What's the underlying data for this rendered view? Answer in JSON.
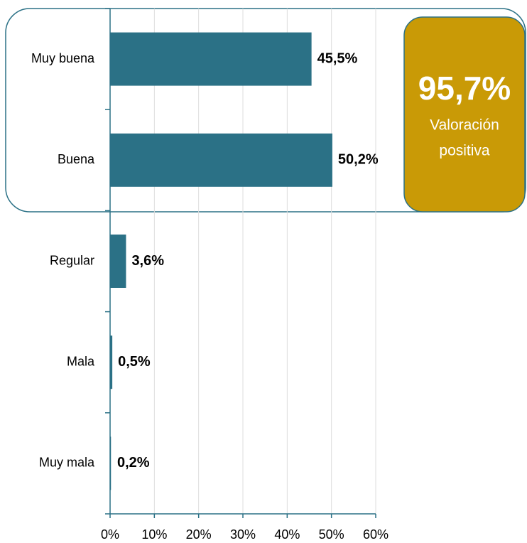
{
  "chart_data": {
    "type": "bar",
    "orientation": "horizontal",
    "categories": [
      "Muy buena",
      "Buena",
      "Regular",
      "Mala",
      "Muy mala"
    ],
    "values": [
      45.5,
      50.2,
      3.6,
      0.5,
      0.2
    ],
    "value_labels": [
      "45,5%",
      "50,2%",
      "3,6%",
      "0,5%",
      "0,2%"
    ],
    "color": "#2b7186",
    "xlim": [
      0,
      60
    ],
    "xticks": [
      {
        "value": 0,
        "label": "0%"
      },
      {
        "value": 10,
        "label": "10%"
      },
      {
        "value": 20,
        "label": "20%"
      },
      {
        "value": 30,
        "label": "30%"
      },
      {
        "value": 40,
        "label": "40%"
      },
      {
        "value": 50,
        "label": "50%"
      },
      {
        "value": 60,
        "label": "60%"
      }
    ],
    "grid": true,
    "annotation": {
      "value_label": "95,7%",
      "text_lines": [
        "Valoración",
        "positiva"
      ],
      "color": "#c99a06"
    }
  }
}
